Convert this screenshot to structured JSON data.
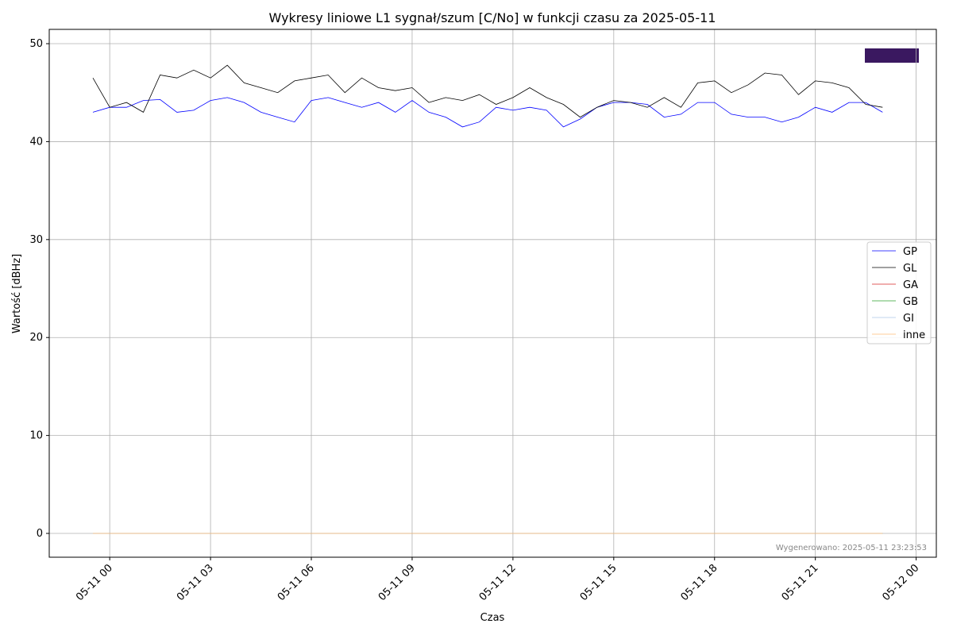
{
  "chart_data": {
    "type": "line",
    "title": "Wykresy liniowe L1 sygnał/szum [C/No] w funkcji czasu za 2025-05-11",
    "x_label": "Czas",
    "y_label": "Wartość [dBHz]",
    "annotation": "Wygenerowano: 2025-05-11 23:23:53",
    "x": [
      -0.5,
      0,
      0.5,
      1,
      1.5,
      2,
      2.5,
      3,
      3.5,
      4,
      4.5,
      5,
      5.5,
      6,
      6.5,
      7,
      7.5,
      8,
      8.5,
      9,
      9.5,
      10,
      10.5,
      11,
      11.5,
      12,
      12.5,
      13,
      13.5,
      14,
      14.5,
      15,
      15.5,
      16,
      16.5,
      17,
      17.5,
      18,
      18.5,
      19,
      19.5,
      20,
      20.5,
      21,
      21.5,
      22,
      22.5,
      23
    ],
    "series": [
      {
        "name": "GP",
        "color": "#0000ff",
        "values": [
          43,
          43.5,
          43.5,
          44.2,
          44.3,
          43,
          43.2,
          44.2,
          44.5,
          44,
          43,
          42.5,
          42,
          44.2,
          44.5,
          44,
          43.5,
          44,
          43,
          44.2,
          43,
          42.5,
          41.5,
          42,
          43.5,
          43.2,
          43.5,
          43.2,
          41.5,
          42.3,
          43.5,
          44,
          44,
          43.8,
          42.5,
          42.8,
          44,
          44,
          42.8,
          42.5,
          42.5,
          42,
          42.5,
          43.5,
          43,
          44,
          44,
          43
        ]
      },
      {
        "name": "GL",
        "color": "#000000",
        "values": [
          46.5,
          43.5,
          44,
          43,
          46.8,
          46.5,
          47.3,
          46.5,
          47.8,
          46,
          45.5,
          45,
          46.2,
          46.5,
          46.8,
          45,
          46.5,
          45.5,
          45.2,
          45.5,
          44,
          44.5,
          44.2,
          44.8,
          43.8,
          44.5,
          45.5,
          44.5,
          43.8,
          42.5,
          43.5,
          44.2,
          44,
          43.5,
          44.5,
          43.5,
          46,
          46.2,
          45,
          45.8,
          47,
          46.8,
          44.8,
          46.2,
          46,
          45.5,
          43.8,
          43.5
        ]
      },
      {
        "name": "GA",
        "color": "#d62728",
        "values": [
          0,
          0,
          0,
          0,
          0,
          0,
          0,
          0,
          0,
          0,
          0,
          0,
          0,
          0,
          0,
          0,
          0,
          0,
          0,
          0,
          0,
          0,
          0,
          0,
          0,
          0,
          0,
          0,
          0,
          0,
          0,
          0,
          0,
          0,
          0,
          0,
          0,
          0,
          0,
          0,
          0,
          0,
          0,
          0,
          0,
          0,
          0,
          0
        ]
      },
      {
        "name": "GB",
        "color": "#2ca02c",
        "values": [
          0,
          0,
          0,
          0,
          0,
          0,
          0,
          0,
          0,
          0,
          0,
          0,
          0,
          0,
          0,
          0,
          0,
          0,
          0,
          0,
          0,
          0,
          0,
          0,
          0,
          0,
          0,
          0,
          0,
          0,
          0,
          0,
          0,
          0,
          0,
          0,
          0,
          0,
          0,
          0,
          0,
          0,
          0,
          0,
          0,
          0,
          0,
          0
        ]
      },
      {
        "name": "GI",
        "color": "#aec7e8",
        "values": [
          0,
          0,
          0,
          0,
          0,
          0,
          0,
          0,
          0,
          0,
          0,
          0,
          0,
          0,
          0,
          0,
          0,
          0,
          0,
          0,
          0,
          0,
          0,
          0,
          0,
          0,
          0,
          0,
          0,
          0,
          0,
          0,
          0,
          0,
          0,
          0,
          0,
          0,
          0,
          0,
          0,
          0,
          0,
          0,
          0,
          0,
          0,
          0
        ]
      },
      {
        "name": "inne",
        "color": "#ffbb78",
        "values": [
          0,
          0,
          0,
          0,
          0,
          0,
          0,
          0,
          0,
          0,
          0,
          0,
          0,
          0,
          0,
          0,
          0,
          0,
          0,
          0,
          0,
          0,
          0,
          0,
          0,
          0,
          0,
          0,
          0,
          0,
          0,
          0,
          0,
          0,
          0,
          0,
          0,
          0,
          0,
          0,
          0,
          0,
          0,
          0,
          0,
          0,
          0,
          0
        ]
      }
    ],
    "xlim": [
      -1.8,
      24.6
    ],
    "xticks": [
      {
        "value": 0,
        "label": "05-11 00"
      },
      {
        "value": 3,
        "label": "05-11 03"
      },
      {
        "value": 6,
        "label": "05-11 06"
      },
      {
        "value": 9,
        "label": "05-11 09"
      },
      {
        "value": 12,
        "label": "05-11 12"
      },
      {
        "value": 15,
        "label": "05-11 15"
      },
      {
        "value": 18,
        "label": "05-11 18"
      },
      {
        "value": 21,
        "label": "05-11 21"
      },
      {
        "value": 24,
        "label": "05-12 00"
      }
    ],
    "ylim": [
      -2.43,
      51.46
    ],
    "yticks": [
      0,
      10,
      20,
      30,
      40,
      50
    ],
    "grid": true,
    "legend": "right"
  }
}
